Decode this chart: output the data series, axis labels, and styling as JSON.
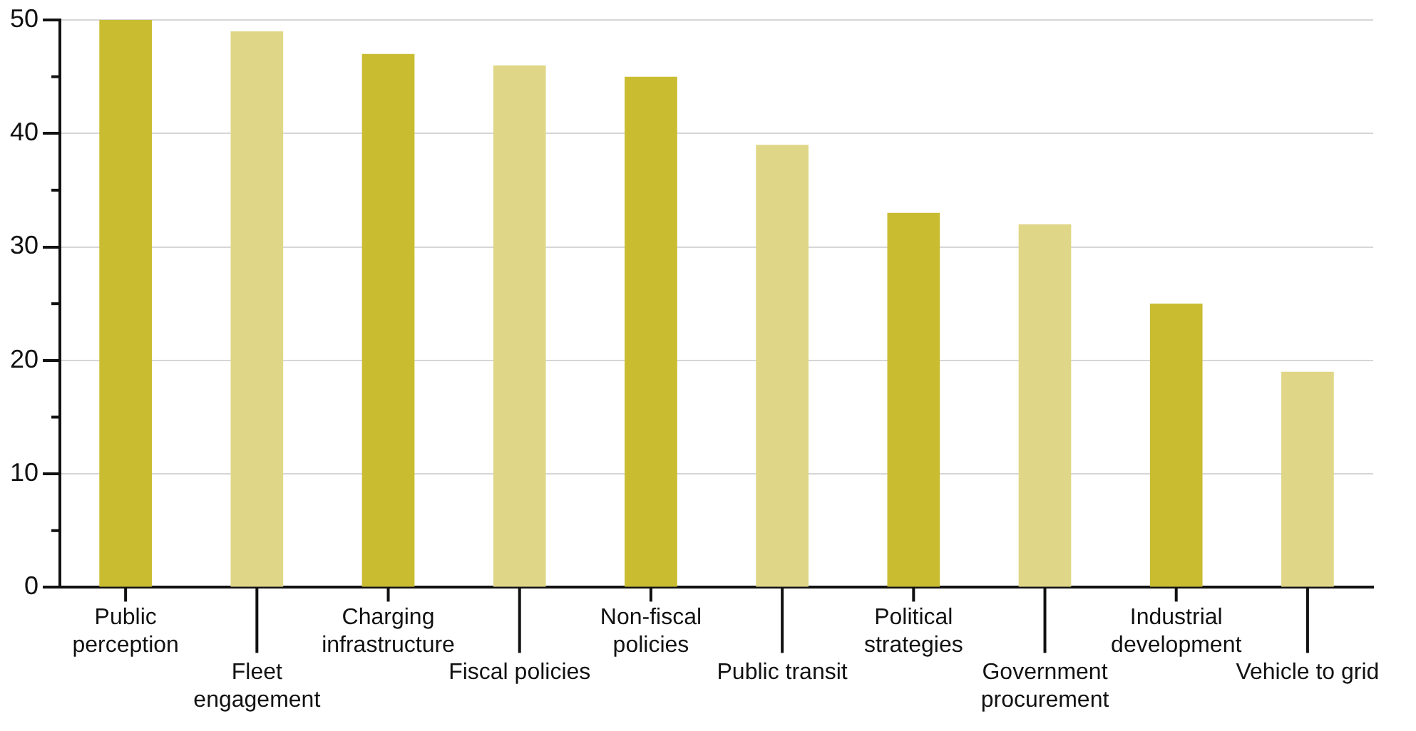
{
  "chart_data": {
    "type": "bar",
    "categories": [
      "Public perception",
      "Fleet engagement",
      "Charging infrastructure",
      "Fiscal policies",
      "Non-fiscal policies",
      "Public transit",
      "Political strategies",
      "Government procurement",
      "Industrial development",
      "Vehicle to grid"
    ],
    "values": [
      50,
      49,
      47,
      46,
      45,
      39,
      33,
      32,
      25,
      19
    ],
    "colors": [
      "#c9bc31",
      "#dfd787",
      "#c9bc31",
      "#dfd787",
      "#c9bc31",
      "#dfd787",
      "#c9bc31",
      "#dfd787",
      "#c9bc31",
      "#dfd787"
    ],
    "ylim": [
      0,
      50
    ],
    "yticks": [
      0,
      {
        "value": 5,
        "label": null
      },
      10,
      {
        "value": 15,
        "label": null
      },
      20,
      {
        "value": 25,
        "label": null
      },
      30,
      {
        "value": 35,
        "label": null
      },
      40,
      {
        "value": 45,
        "label": null
      },
      50
    ],
    "grid": "y",
    "legend": false
  }
}
